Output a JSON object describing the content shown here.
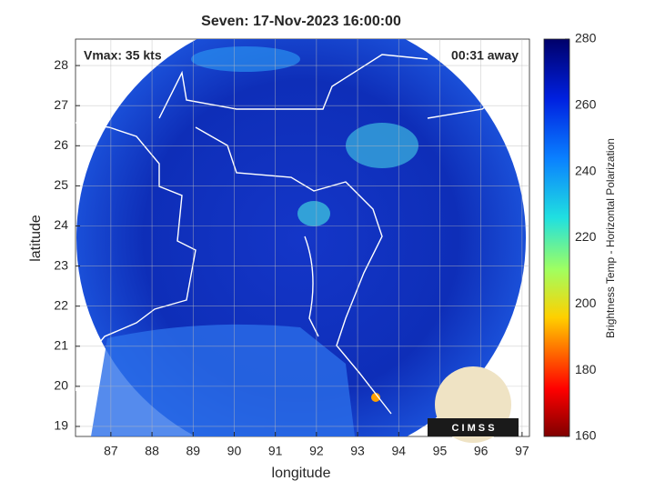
{
  "chart_data": {
    "type": "map",
    "title": "Seven: 17-Nov-2023 16:00:00",
    "annotations": [
      "Vmax: 35 kts",
      "00:31 away"
    ],
    "xlabel": "longitude",
    "ylabel": "latitude",
    "xlim": [
      86.14,
      97.18
    ],
    "ylim": [
      18.75,
      28.66
    ],
    "xticks": [
      87,
      88,
      89,
      90,
      91,
      92,
      93,
      94,
      95,
      96,
      97
    ],
    "yticks": [
      19,
      20,
      21,
      22,
      23,
      24,
      25,
      26,
      27,
      28
    ],
    "grid": true,
    "colorbar": {
      "label": "Brightness Temp - Horizontal Polarization",
      "lim": [
        160,
        280
      ],
      "ticks": [
        160,
        180,
        200,
        220,
        240,
        260,
        280
      ]
    },
    "logo": "C I M S S"
  }
}
